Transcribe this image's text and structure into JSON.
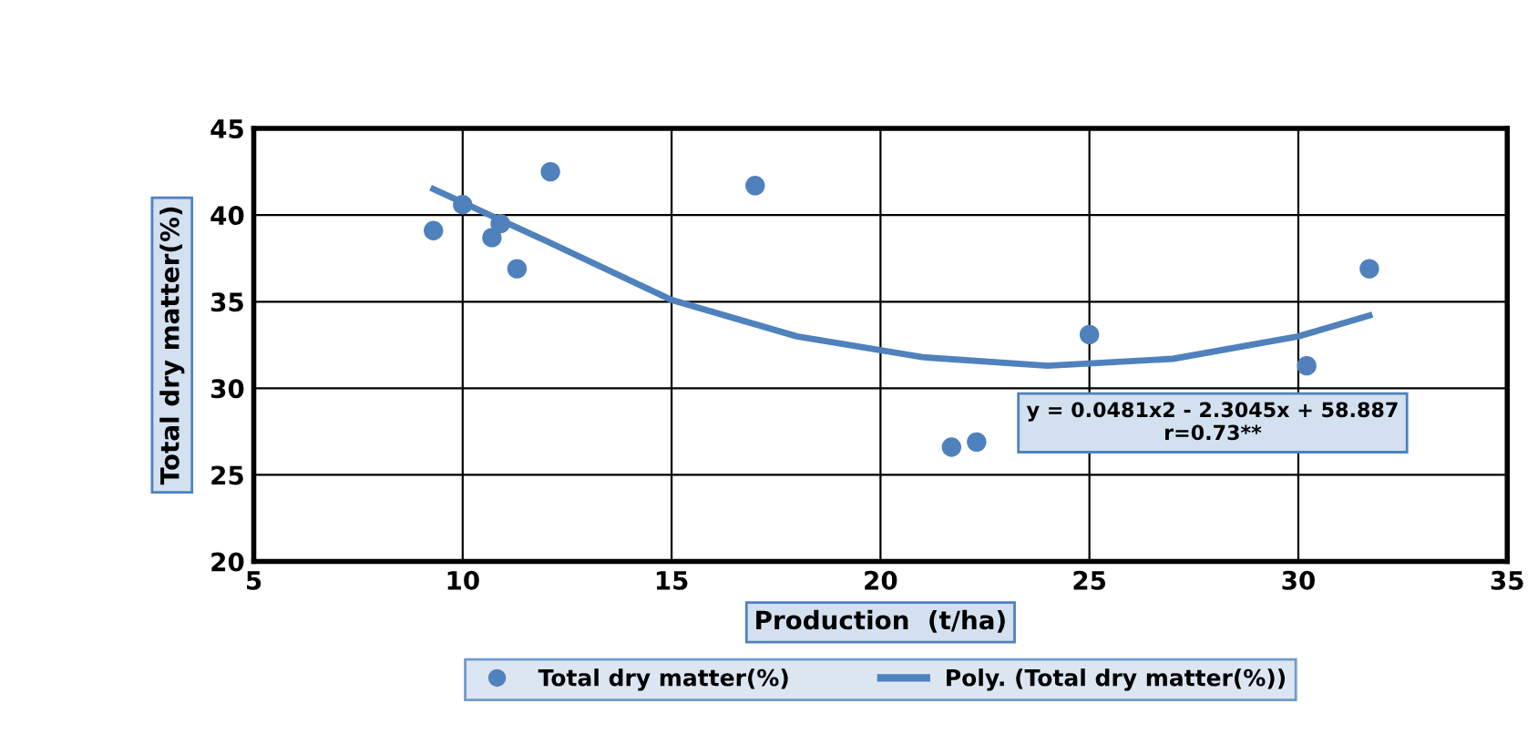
{
  "chart_data": {
    "type": "scatter",
    "xlabel": "Production  (t/ha)",
    "ylabel": "Total dry matter(%)",
    "xlim": [
      5,
      35
    ],
    "xticks": [
      5,
      10,
      15,
      20,
      25,
      30,
      35
    ],
    "ylim": [
      20,
      45
    ],
    "yticks": [
      20,
      25,
      30,
      35,
      40,
      45
    ],
    "grid": true,
    "legend": "bottom",
    "marker": "circle",
    "annotations": [
      "y = 0.0481x2 - 2.3045x + 58.887\nr=0.73**"
    ],
    "series": [
      {
        "name": "Total dry matter(%)",
        "color": "#4f81bd",
        "x": [
          9.3,
          10.0,
          10.7,
          10.9,
          11.3,
          12.1,
          17.0,
          21.7,
          22.3,
          25.0,
          30.2,
          31.7
        ],
        "values": [
          39.1,
          40.6,
          38.7,
          39.5,
          36.9,
          42.5,
          41.7,
          26.6,
          26.9,
          33.1,
          31.3,
          36.9
        ]
      },
      {
        "name": "Poly. (Total dry matter(%))",
        "color": "#4f81bd",
        "type": "line",
        "marker": "none",
        "x": [
          9.3,
          12,
          15,
          18,
          21,
          24,
          27,
          30,
          31.7
        ],
        "values": [
          41.5,
          38.5,
          35.1,
          33.0,
          31.8,
          31.3,
          31.7,
          33.0,
          34.2
        ]
      }
    ]
  }
}
